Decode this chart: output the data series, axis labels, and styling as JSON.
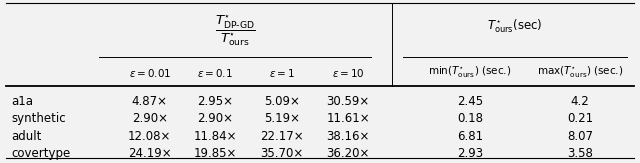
{
  "rows": [
    [
      "a1a",
      "4.87×",
      "2.95×",
      "5.09×",
      "30.59×",
      "2.45",
      "4.2"
    ],
    [
      "synthetic",
      "2.90×",
      "2.90×",
      "5.19×",
      "11.61×",
      "0.18",
      "0.21"
    ],
    [
      "adult",
      "12.08×",
      "11.84×",
      "22.17×",
      "38.16×",
      "6.81",
      "8.07"
    ],
    [
      "covertype",
      "24.19×",
      "19.85×",
      "35.70×",
      "36.20×",
      "2.93",
      "3.58"
    ]
  ],
  "bg_color": "#f2f2f2",
  "font_size": 8.5
}
